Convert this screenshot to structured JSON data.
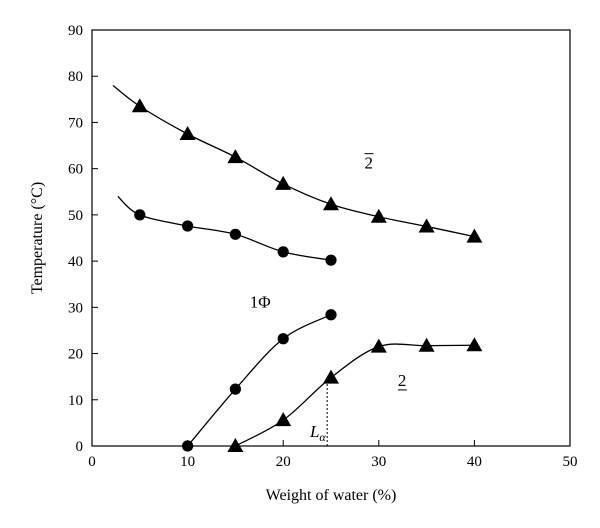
{
  "chart_data": {
    "type": "scatter",
    "xlabel": "Weight of water (%)",
    "ylabel": "Temperature (°C)",
    "xlim": [
      0,
      50
    ],
    "ylim": [
      0,
      90
    ],
    "xticks": [
      0,
      10,
      20,
      30,
      40,
      50
    ],
    "yticks": [
      0,
      10,
      20,
      30,
      40,
      50,
      60,
      70,
      80,
      90
    ],
    "grid": false,
    "series": [
      {
        "marker": "triangle",
        "points": [
          [
            5,
            73.5
          ],
          [
            10,
            67.5
          ],
          [
            15,
            62.5
          ],
          [
            20,
            56.7
          ],
          [
            25,
            52.3
          ],
          [
            30,
            49.6
          ],
          [
            35,
            47.5
          ],
          [
            40,
            45.3
          ]
        ],
        "curve": [
          [
            2.2,
            78
          ],
          [
            5,
            73.5
          ],
          [
            10,
            67.5
          ],
          [
            15,
            62.5
          ],
          [
            20,
            56.7
          ],
          [
            25,
            52.3
          ],
          [
            30,
            49.6
          ],
          [
            35,
            47.5
          ],
          [
            40,
            45.3
          ]
        ]
      },
      {
        "marker": "circle",
        "points": [
          [
            5,
            50
          ],
          [
            10,
            47.6
          ],
          [
            15,
            45.8
          ],
          [
            20,
            42
          ],
          [
            25,
            40.2
          ]
        ],
        "curve": [
          [
            2.7,
            54
          ],
          [
            5,
            50
          ],
          [
            10,
            47.6
          ],
          [
            15,
            45.8
          ],
          [
            20,
            42
          ],
          [
            25,
            40.2
          ]
        ]
      },
      {
        "marker": "circle",
        "points": [
          [
            10,
            0
          ],
          [
            15,
            12.3
          ],
          [
            20,
            23.2
          ],
          [
            25,
            28.4
          ]
        ],
        "curve": [
          [
            10,
            0
          ],
          [
            15,
            12.3
          ],
          [
            20,
            23.2
          ],
          [
            25,
            28.4
          ]
        ]
      },
      {
        "marker": "triangle",
        "points": [
          [
            15,
            0
          ],
          [
            20,
            5.6
          ],
          [
            25,
            14.8
          ],
          [
            30,
            21.5
          ],
          [
            35,
            21.7
          ],
          [
            40,
            21.8
          ]
        ],
        "curve": [
          [
            15,
            0
          ],
          [
            20,
            5.6
          ],
          [
            25,
            14.8
          ],
          [
            30,
            21.5
          ],
          [
            35,
            21.7
          ],
          [
            40,
            21.8
          ]
        ]
      }
    ],
    "annotations": [
      {
        "text": "2",
        "style": "overline",
        "x": 28.5,
        "y": 60
      },
      {
        "text": "1Φ",
        "style": "plain",
        "x": 16.5,
        "y": 30
      },
      {
        "text": "2",
        "style": "underline",
        "x": 32,
        "y": 13
      },
      {
        "text": "L",
        "sub": "α",
        "style": "italic",
        "x": 22.8,
        "y": 2
      }
    ],
    "dotted_line": {
      "x": 24.6,
      "y_from": 0,
      "y_to": 13.5
    }
  }
}
